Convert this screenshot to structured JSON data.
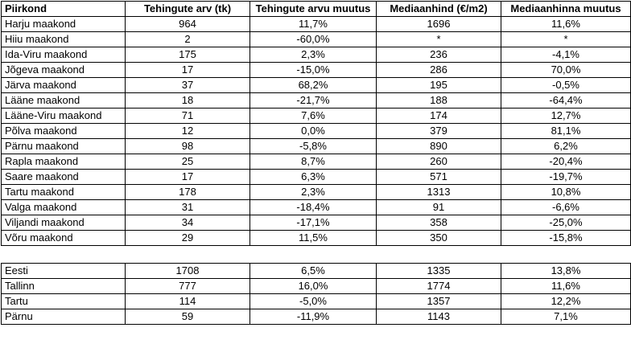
{
  "headers": [
    "Piirkond",
    "Tehingute arv (tk)",
    "Tehingute arvu muutus",
    "Mediaanhind (€/m2)",
    "Mediaanhinna muutus"
  ],
  "counties": [
    [
      "Harju maakond",
      "964",
      "11,7%",
      "1696",
      "11,6%"
    ],
    [
      "Hiiu maakond",
      "2",
      "-60,0%",
      "*",
      "*"
    ],
    [
      "Ida-Viru maakond",
      "175",
      "2,3%",
      "236",
      "-4,1%"
    ],
    [
      "Jõgeva maakond",
      "17",
      "-15,0%",
      "286",
      "70,0%"
    ],
    [
      "Järva maakond",
      "37",
      "68,2%",
      "195",
      "-0,5%"
    ],
    [
      "Lääne maakond",
      "18",
      "-21,7%",
      "188",
      "-64,4%"
    ],
    [
      "Lääne-Viru maakond",
      "71",
      "7,6%",
      "174",
      "12,7%"
    ],
    [
      "Põlva maakond",
      "12",
      "0,0%",
      "379",
      "81,1%"
    ],
    [
      "Pärnu maakond",
      "98",
      "-5,8%",
      "890",
      "6,2%"
    ],
    [
      "Rapla maakond",
      "25",
      "8,7%",
      "260",
      "-20,4%"
    ],
    [
      "Saare maakond",
      "17",
      "6,3%",
      "571",
      "-19,7%"
    ],
    [
      "Tartu maakond",
      "178",
      "2,3%",
      "1313",
      "10,8%"
    ],
    [
      "Valga maakond",
      "31",
      "-18,4%",
      "91",
      "-6,6%"
    ],
    [
      "Viljandi maakond",
      "34",
      "-17,1%",
      "358",
      "-25,0%"
    ],
    [
      "Võru maakond",
      "29",
      "11,5%",
      "350",
      "-15,8%"
    ]
  ],
  "summary": [
    [
      "Eesti",
      "1708",
      "6,5%",
      "1335",
      "13,8%"
    ],
    [
      "Tallinn",
      "777",
      "16,0%",
      "1774",
      "11,6%"
    ],
    [
      "Tartu",
      "114",
      "-5,0%",
      "1357",
      "12,2%"
    ],
    [
      "Pärnu",
      "59",
      "-11,9%",
      "1143",
      "7,1%"
    ]
  ]
}
